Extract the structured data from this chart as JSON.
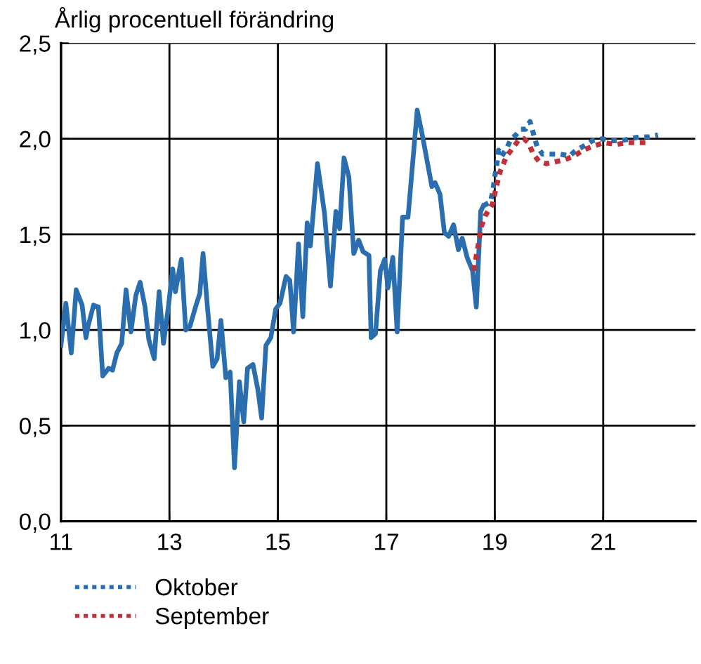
{
  "chart_data": {
    "type": "line",
    "title": "Årlig procentuell förändring",
    "xlim": [
      11,
      22.7
    ],
    "xticks": [
      11,
      13,
      15,
      17,
      19,
      21
    ],
    "ylim": [
      0,
      2.5
    ],
    "yticks": [
      {
        "value": 0,
        "label": "0,0"
      },
      {
        "value": 0.5,
        "label": "0,5"
      },
      {
        "value": 1,
        "label": "1,0"
      },
      {
        "value": 1.5,
        "label": "1,5"
      },
      {
        "value": 2,
        "label": "2,0"
      },
      {
        "value": 2.5,
        "label": "2,5"
      }
    ],
    "grid": true,
    "legend": "bottom",
    "marker": "none",
    "series": [
      {
        "color": "#2a6eb0",
        "line_style": "solid",
        "x": [
          11.0,
          11.09,
          11.19,
          11.28,
          11.39,
          11.46,
          11.5,
          11.6,
          11.69,
          11.77,
          11.88,
          11.95,
          12.03,
          12.12,
          12.2,
          12.29,
          12.38,
          12.46,
          12.55,
          12.62,
          12.72,
          12.81,
          12.89,
          12.98,
          13.06,
          13.11,
          13.22,
          13.3,
          13.38,
          13.48,
          13.56,
          13.62,
          13.71,
          13.8,
          13.88,
          13.95,
          14.04,
          14.12,
          14.2,
          14.29,
          14.37,
          14.44,
          14.54,
          14.63,
          14.7,
          14.78,
          14.87,
          14.96,
          15.04,
          15.15,
          15.22,
          15.29,
          15.38,
          15.46,
          15.54,
          15.6,
          15.73,
          15.86,
          15.97,
          16.07,
          16.14,
          16.22,
          16.31,
          16.4,
          16.49,
          16.57,
          16.68,
          16.72,
          16.8,
          16.89,
          16.97,
          17.03,
          17.12,
          17.2,
          17.3,
          17.4,
          17.57,
          17.67,
          17.84,
          17.9,
          17.99,
          18.07,
          18.15,
          18.24,
          18.33,
          18.4,
          18.49,
          18.59,
          18.66,
          18.74,
          18.79
        ],
        "values": [
          0.92,
          1.14,
          0.88,
          1.21,
          1.13,
          0.96,
          1.02,
          1.13,
          1.12,
          0.76,
          0.8,
          0.79,
          0.88,
          0.93,
          1.21,
          0.99,
          1.18,
          1.25,
          1.12,
          0.95,
          0.85,
          1.2,
          0.93,
          1.12,
          1.32,
          1.2,
          1.37,
          1.0,
          1.02,
          1.12,
          1.19,
          1.4,
          1.09,
          0.81,
          0.85,
          1.05,
          0.75,
          0.78,
          0.28,
          0.73,
          0.52,
          0.8,
          0.82,
          0.69,
          0.54,
          0.92,
          0.96,
          1.11,
          1.14,
          1.28,
          1.26,
          0.99,
          1.45,
          1.07,
          1.56,
          1.44,
          1.87,
          1.61,
          1.23,
          1.62,
          1.53,
          1.9,
          1.8,
          1.4,
          1.47,
          1.41,
          1.39,
          0.96,
          0.98,
          1.31,
          1.37,
          1.22,
          1.38,
          0.99,
          1.59,
          1.59,
          2.15,
          2.01,
          1.75,
          1.77,
          1.71,
          1.51,
          1.49,
          1.55,
          1.42,
          1.48,
          1.38,
          1.31,
          1.12,
          1.62,
          1.65
        ]
      },
      {
        "name": "Oktober",
        "color": "#2a6eb0",
        "line_style": "dotted",
        "x": [
          18.79,
          18.92,
          18.96,
          19.0,
          19.04,
          19.07,
          19.13,
          19.22,
          19.3,
          19.39,
          19.48,
          19.57,
          19.65,
          19.72,
          19.78,
          19.88,
          20.04,
          20.2,
          20.38,
          20.5,
          20.63,
          20.8,
          20.98,
          21.15,
          21.32,
          21.5,
          21.67,
          21.84,
          22.01
        ],
        "values": [
          1.65,
          1.67,
          1.72,
          1.8,
          1.87,
          1.94,
          1.91,
          1.95,
          2.0,
          2.02,
          2.05,
          2.05,
          2.09,
          2.02,
          1.96,
          1.92,
          1.92,
          1.92,
          1.91,
          1.94,
          1.96,
          1.99,
          2.0,
          1.99,
          1.99,
          2.0,
          2.01,
          2.01,
          2.02
        ]
      },
      {
        "name": "September",
        "color": "#c0303a",
        "line_style": "dotted",
        "x": [
          18.61,
          18.68,
          18.75,
          18.83,
          18.96,
          19.03,
          19.1,
          19.22,
          19.33,
          19.43,
          19.54,
          19.62,
          19.71,
          19.82,
          19.95,
          20.12,
          20.29,
          20.46,
          20.63,
          20.8,
          21.02,
          21.23,
          21.45,
          21.63,
          21.78
        ],
        "values": [
          1.31,
          1.42,
          1.54,
          1.6,
          1.66,
          1.75,
          1.83,
          1.91,
          1.95,
          1.99,
          2.0,
          1.98,
          1.92,
          1.88,
          1.87,
          1.88,
          1.89,
          1.91,
          1.94,
          1.96,
          1.98,
          1.97,
          1.98,
          1.98,
          1.98
        ]
      }
    ]
  }
}
